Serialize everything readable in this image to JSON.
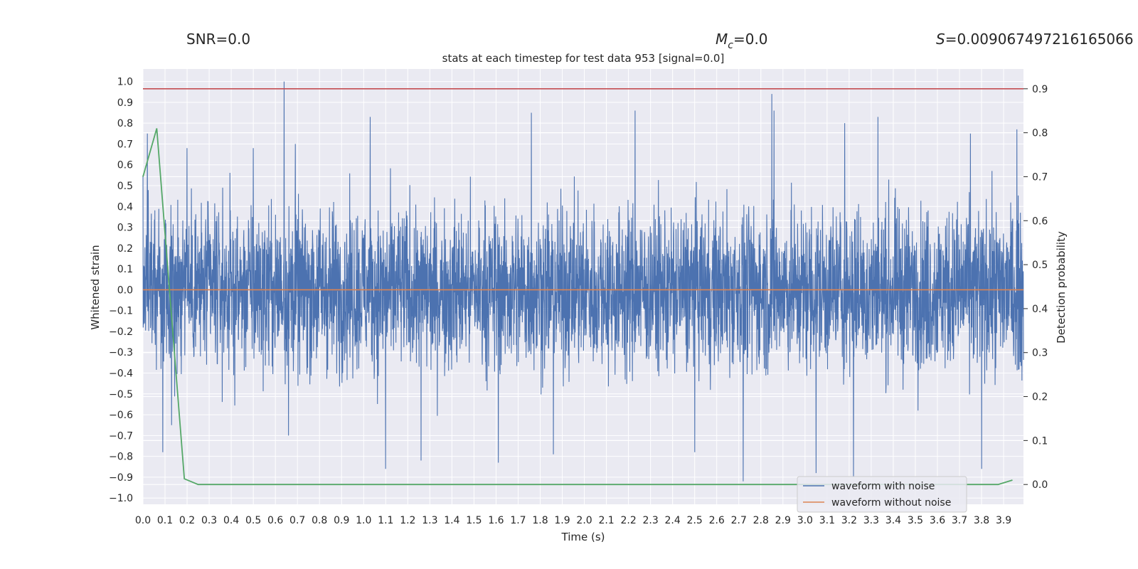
{
  "header": {
    "snr_text": "SNR=0.0",
    "mc_symbol": "M",
    "mc_sub": "c",
    "mc_value": "=0.0",
    "s_symbol": "S",
    "s_value": "=0.009067497216165066"
  },
  "chart_data": {
    "type": "line",
    "title": "stats at each timestep for test data 953 [signal=0.0]",
    "xlabel": "Time (s)",
    "ylabel": "Whitened strain",
    "y2label": "Detection probability",
    "xlim": [
      0.0,
      3.99
    ],
    "ylim": [
      -1.03,
      1.06
    ],
    "y2lim": [
      -0.045,
      0.945
    ],
    "xticks": [
      "0.0",
      "0.1",
      "0.2",
      "0.3",
      "0.4",
      "0.5",
      "0.6",
      "0.7",
      "0.8",
      "0.9",
      "1.0",
      "1.1",
      "1.2",
      "1.3",
      "1.4",
      "1.5",
      "1.6",
      "1.7",
      "1.8",
      "1.9",
      "2.0",
      "2.1",
      "2.2",
      "2.3",
      "2.4",
      "2.5",
      "2.6",
      "2.7",
      "2.8",
      "2.9",
      "3.0",
      "3.1",
      "3.2",
      "3.3",
      "3.4",
      "3.5",
      "3.6",
      "3.7",
      "3.8",
      "3.9"
    ],
    "yticks": [
      "1.0",
      "0.9",
      "0.8",
      "0.7",
      "0.6",
      "0.5",
      "0.4",
      "0.3",
      "0.2",
      "0.1",
      "0.0",
      "−0.1",
      "−0.2",
      "−0.3",
      "−0.4",
      "−0.5",
      "−0.6",
      "−0.7",
      "−0.8",
      "−0.9",
      "−1.0"
    ],
    "y2ticks": [
      "0.9",
      "0.8",
      "0.7",
      "0.6",
      "0.5",
      "0.4",
      "0.3",
      "0.2",
      "0.1",
      "0.0"
    ],
    "threshold": {
      "value": 0.9,
      "axis": "right",
      "color": "#c44e52"
    },
    "series": [
      {
        "name": "waveform with noise",
        "axis": "left",
        "color": "#4c72b0",
        "note": "dense whitened noise, max ~1.0 at t~0.64s, min ~-0.92 at t~2.72s",
        "peaks": [
          [
            0.0,
            0.55
          ],
          [
            0.02,
            0.75
          ],
          [
            0.09,
            -0.78
          ],
          [
            0.13,
            -0.65
          ],
          [
            0.2,
            0.68
          ],
          [
            0.5,
            0.68
          ],
          [
            0.64,
            1.0
          ],
          [
            0.66,
            -0.7
          ],
          [
            0.69,
            0.7
          ],
          [
            1.03,
            0.83
          ],
          [
            1.1,
            -0.86
          ],
          [
            1.26,
            -0.82
          ],
          [
            1.61,
            -0.83
          ],
          [
            1.76,
            0.85
          ],
          [
            1.86,
            -0.79
          ],
          [
            2.23,
            0.86
          ],
          [
            2.5,
            -0.78
          ],
          [
            2.72,
            -0.92
          ],
          [
            2.85,
            0.94
          ],
          [
            2.86,
            0.86
          ],
          [
            3.05,
            -0.88
          ],
          [
            3.18,
            0.8
          ],
          [
            3.22,
            -0.9
          ],
          [
            3.33,
            0.83
          ],
          [
            3.75,
            0.75
          ],
          [
            3.8,
            -0.86
          ],
          [
            3.96,
            0.77
          ]
        ]
      },
      {
        "name": "waveform without noise",
        "axis": "left",
        "color": "#dd8452",
        "x": [
          0.0,
          3.99
        ],
        "y": [
          0.0,
          0.0
        ]
      },
      {
        "name": "detection probability",
        "axis": "right",
        "color": "#55a868",
        "x": [
          0.0,
          0.0625,
          0.1875,
          0.25,
          3.875,
          3.94
        ],
        "y": [
          0.7,
          0.81,
          0.013,
          0.0,
          0.0,
          0.01
        ]
      }
    ],
    "legend": {
      "position": "lower-right",
      "entries": [
        "waveform with noise",
        "waveform without noise"
      ]
    },
    "grid": true
  }
}
